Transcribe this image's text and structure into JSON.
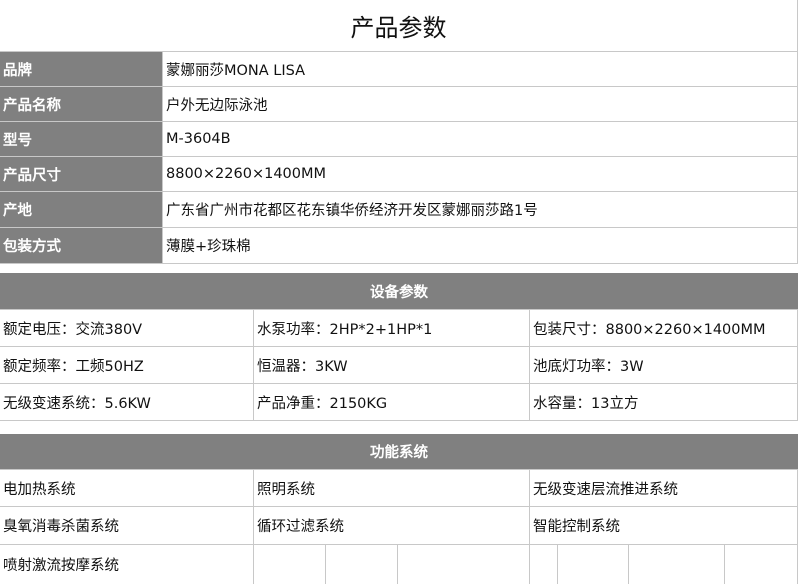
{
  "title": "产品参数",
  "basic": [
    {
      "label": "品牌",
      "value": "蒙娜丽莎MONA LISA"
    },
    {
      "label": "产品名称",
      "value": "户外无边际泳池"
    },
    {
      "label": "型号",
      "value": "M-3604B"
    },
    {
      "label": "产品尺寸",
      "value": "8800×2260×1400MM"
    },
    {
      "label": "产地",
      "value": "广东省广州市花都区花东镇华侨经济开发区蒙娜丽莎路1号"
    },
    {
      "label": "包装方式",
      "value": "薄膜+珍珠棉"
    }
  ],
  "equipment": {
    "header": "设备参数",
    "rows": [
      [
        "额定电压：交流380V",
        "水泵功率：2HP*2+1HP*1",
        "包装尺寸：8800×2260×1400MM"
      ],
      [
        "额定频率：工频50HZ",
        "恒温器：3KW",
        "池底灯功率：3W"
      ],
      [
        "无级变速系统：5.6KW",
        "产品净重：2150KG",
        "水容量：13立方"
      ]
    ]
  },
  "functions": {
    "header": "功能系统",
    "rows": [
      [
        "电加热系统",
        "照明系统",
        "无级变速层流推进系统"
      ],
      [
        "臭氧消毒杀菌系统",
        "循环过滤系统",
        "智能控制系统"
      ],
      [
        "喷射激流按摩系统",
        "",
        ""
      ]
    ]
  }
}
